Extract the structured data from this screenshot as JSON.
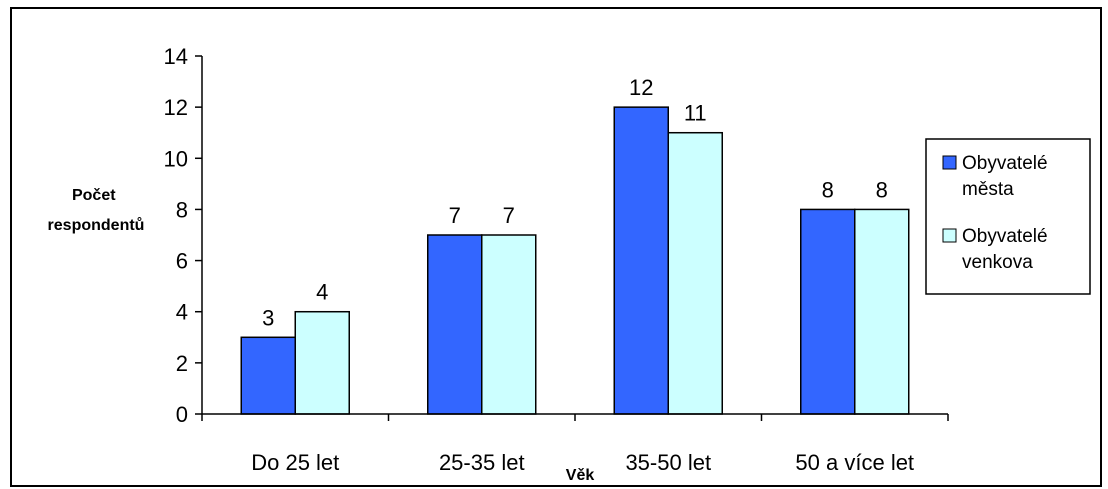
{
  "chart_data": {
    "type": "bar",
    "ylabel": "Počet respondentů",
    "ylabel_lines": [
      "Počet",
      "respondentů"
    ],
    "xlabel": "Věk",
    "categories": [
      "Do 25 let",
      "25-35 let",
      "35-50 let",
      "50 a více let"
    ],
    "series": [
      {
        "name": "Obyvatelé města",
        "name_lines": [
          "Obyvatelé",
          "města"
        ],
        "values": [
          3,
          7,
          12,
          8
        ],
        "color": "#3366ff"
      },
      {
        "name": "Obyvatelé venkova",
        "name_lines": [
          "Obyvatelé",
          "venkova"
        ],
        "values": [
          4,
          7,
          11,
          8
        ],
        "color": "#ccffff"
      }
    ],
    "ylim": [
      0,
      14
    ],
    "yticks": [
      0,
      2,
      4,
      6,
      8,
      10,
      12,
      14
    ],
    "data_labels": true,
    "grid": false,
    "legend_position": "right"
  }
}
